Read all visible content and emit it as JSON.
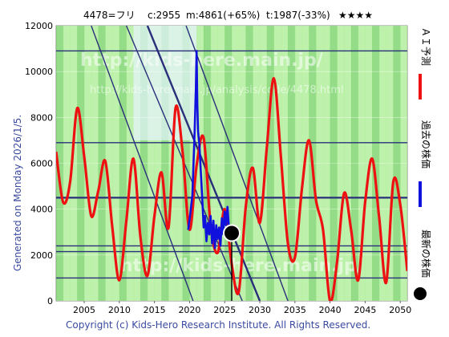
{
  "header": {
    "code_name": "4478=フリ",
    "current": "c:2955",
    "mid": "m:4861(+65%)",
    "target": "t:1987(-33%)",
    "stars": "★★★★"
  },
  "side_text": "Generated on Monday 2026/1/5.",
  "watermark": {
    "main": "http://kids-here.main.jp/",
    "sub": "http://kids-here.main.jp/analysis/code/4478.html"
  },
  "copyright": "Copyright (c) Kids-Hero Research Institute. All Rights Reserved.",
  "legend": {
    "ai": "ＡＩ予測",
    "past": "過去の株価",
    "latest": "最新の株価"
  },
  "colors": {
    "ai": "#ee1111",
    "past": "#1111dd",
    "latest": "#000000",
    "band_light": "#a8ee90",
    "band_dark": "#70d060",
    "grid": "#2a2f7a"
  },
  "chart_data": {
    "type": "line",
    "xlim": [
      2001,
      2051
    ],
    "ylim": [
      0,
      12000
    ],
    "x_ticks": [
      2005,
      2010,
      2015,
      2020,
      2025,
      2030,
      2035,
      2040,
      2045,
      2050
    ],
    "y_ticks": [
      0,
      2000,
      4000,
      6000,
      8000,
      10000,
      12000
    ],
    "h_lines": [
      10900,
      6900,
      4500,
      2400,
      2150,
      1000
    ],
    "diag_lines": [
      [
        [
          2011,
          12000
        ],
        [
          2027.5,
          0
        ]
      ],
      [
        [
          2014,
          12000
        ],
        [
          2030,
          0
        ]
      ],
      [
        [
          2006,
          12000
        ],
        [
          2020.5,
          0
        ]
      ],
      [
        [
          2019.5,
          12000
        ],
        [
          2034,
          0
        ]
      ]
    ],
    "series": [
      {
        "name": "ＡＩ予測",
        "x": [
          2001,
          2002,
          2003,
          2004,
          2005,
          2006,
          2007,
          2008,
          2009,
          2010,
          2011,
          2012,
          2013,
          2014,
          2015,
          2016,
          2017,
          2018,
          2019,
          2020,
          2021,
          2022,
          2023,
          2024,
          2025,
          2026,
          2027,
          2028,
          2029,
          2030,
          2031,
          2032,
          2033,
          2034,
          2035,
          2036,
          2037,
          2038,
          2039,
          2040,
          2041,
          2042,
          2043,
          2044,
          2045,
          2046,
          2047,
          2048,
          2049,
          2050,
          2051
        ],
        "values": [
          6500,
          4300,
          5200,
          8400,
          6300,
          3700,
          4800,
          6100,
          3200,
          900,
          3500,
          6200,
          2800,
          1100,
          3700,
          5600,
          3200,
          8400,
          6500,
          3100,
          5900,
          7100,
          3300,
          2100,
          4000,
          1600,
          400,
          4100,
          5800,
          3400,
          6700,
          9700,
          6300,
          2500,
          1900,
          4900,
          7000,
          4400,
          3100,
          0,
          1700,
          4700,
          3100,
          900,
          4300,
          6200,
          3600,
          800,
          5200,
          4200,
          1300
        ]
      },
      {
        "name": "過去の株価",
        "x": [
          2019.8,
          2020.1,
          2020.4,
          2020.7,
          2020.9,
          2021.0,
          2021.1,
          2021.2,
          2021.4,
          2021.6,
          2021.8,
          2022.0,
          2022.2,
          2022.4,
          2022.6,
          2022.8,
          2023.0,
          2023.2,
          2023.4,
          2023.6,
          2023.8,
          2024.0,
          2024.2,
          2024.4,
          2024.6,
          2024.8,
          2025.0,
          2025.2,
          2025.4,
          2025.6,
          2025.8,
          2026.0
        ],
        "values": [
          3100,
          3800,
          4600,
          7200,
          9300,
          10900,
          8600,
          7400,
          6800,
          5600,
          4500,
          3200,
          3700,
          2600,
          3400,
          2900,
          3700,
          2500,
          3500,
          2300,
          3300,
          2700,
          3200,
          2400,
          3600,
          2900,
          3900,
          3300,
          4100,
          3200,
          2700,
          2955
        ]
      }
    ],
    "latest": {
      "x": 2026,
      "y": 2955
    }
  }
}
